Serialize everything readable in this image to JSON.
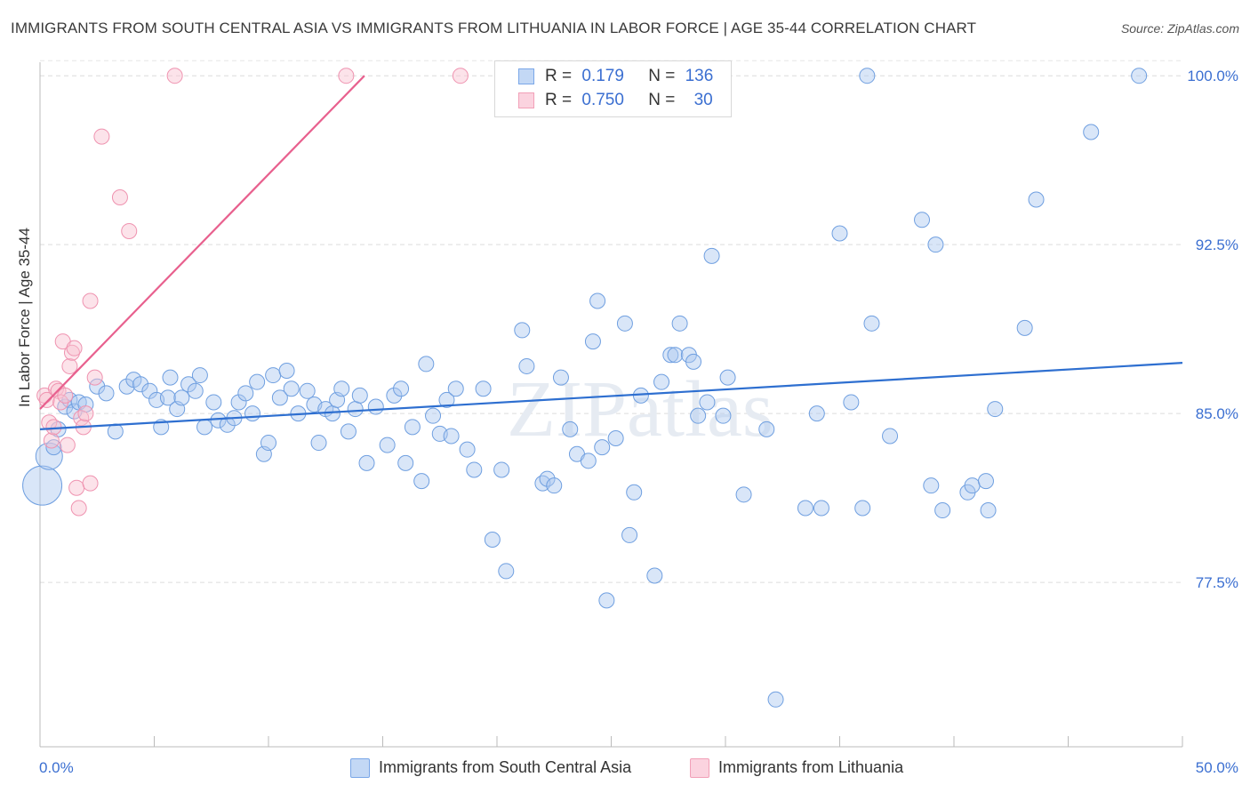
{
  "title": "IMMIGRANTS FROM SOUTH CENTRAL ASIA VS IMMIGRANTS FROM LITHUANIA IN LABOR FORCE | AGE 35-44 CORRELATION CHART",
  "source": "Source: ZipAtlas.com",
  "watermark": "ZIPatlas",
  "legend": {
    "rows": [
      {
        "r_label": "R =",
        "r_value": "0.179",
        "n_label": "N =",
        "n_value": "136",
        "color": "#7aa7e8"
      },
      {
        "r_label": "R =",
        "r_value": "0.750",
        "n_label": "N =",
        "n_value": "30",
        "color": "#f2a0b8"
      }
    ]
  },
  "bottom_legend": [
    "Immigrants from South Central Asia",
    "Immigrants from Lithuania"
  ],
  "chart_data": {
    "type": "scatter",
    "title": "IMMIGRANTS FROM SOUTH CENTRAL ASIA VS IMMIGRANTS FROM LITHUANIA IN LABOR FORCE | AGE 35-44 CORRELATION CHART",
    "xlabel": "",
    "ylabel": "In Labor Force | Age 35-44",
    "xlim": [
      0,
      50
    ],
    "ylim": [
      70.2,
      100.6
    ],
    "x_tick_labels": [
      "0.0%",
      "50.0%"
    ],
    "y_ticks": [
      77.5,
      85.0,
      92.5,
      100.0
    ],
    "y_tick_labels": [
      "77.5%",
      "85.0%",
      "92.5%",
      "100.0%"
    ],
    "grid": true,
    "legend_position": "top-center",
    "series": [
      {
        "name": "Immigrants from South Central Asia",
        "color": "#7aa7e8",
        "R": 0.179,
        "N": 136,
        "trend": {
          "x": [
            0.0,
            50.0
          ],
          "y": [
            84.3,
            87.25
          ]
        },
        "points": [
          [
            0.1,
            81.8
          ],
          [
            0.4,
            83.1
          ],
          [
            0.6,
            83.5
          ],
          [
            0.8,
            84.3
          ],
          [
            1.1,
            85.3
          ],
          [
            1.3,
            85.6
          ],
          [
            1.5,
            85.1
          ],
          [
            1.7,
            85.5
          ],
          [
            2.0,
            85.4
          ],
          [
            2.5,
            86.2
          ],
          [
            2.9,
            85.9
          ],
          [
            3.3,
            84.2
          ],
          [
            3.8,
            86.2
          ],
          [
            4.1,
            86.5
          ],
          [
            4.4,
            86.3
          ],
          [
            4.8,
            86.0
          ],
          [
            5.1,
            85.6
          ],
          [
            5.3,
            84.4
          ],
          [
            5.6,
            85.7
          ],
          [
            5.7,
            86.6
          ],
          [
            6.0,
            85.2
          ],
          [
            6.2,
            85.7
          ],
          [
            6.5,
            86.3
          ],
          [
            6.8,
            86.0
          ],
          [
            7.0,
            86.7
          ],
          [
            7.2,
            84.4
          ],
          [
            7.6,
            85.5
          ],
          [
            7.8,
            84.7
          ],
          [
            8.2,
            84.5
          ],
          [
            8.5,
            84.8
          ],
          [
            8.7,
            85.5
          ],
          [
            9.0,
            85.9
          ],
          [
            9.3,
            85.0
          ],
          [
            9.5,
            86.4
          ],
          [
            9.8,
            83.2
          ],
          [
            10.0,
            83.7
          ],
          [
            10.2,
            86.7
          ],
          [
            10.5,
            85.7
          ],
          [
            10.8,
            86.9
          ],
          [
            11.0,
            86.1
          ],
          [
            11.3,
            85.0
          ],
          [
            11.7,
            86.0
          ],
          [
            12.0,
            85.4
          ],
          [
            12.2,
            83.7
          ],
          [
            12.5,
            85.2
          ],
          [
            12.8,
            85.0
          ],
          [
            13.0,
            85.6
          ],
          [
            13.2,
            86.1
          ],
          [
            13.5,
            84.2
          ],
          [
            13.8,
            85.2
          ],
          [
            14.0,
            85.8
          ],
          [
            14.3,
            82.8
          ],
          [
            14.7,
            85.3
          ],
          [
            15.2,
            83.6
          ],
          [
            15.5,
            85.8
          ],
          [
            15.8,
            86.1
          ],
          [
            16.0,
            82.8
          ],
          [
            16.3,
            84.4
          ],
          [
            16.7,
            82.0
          ],
          [
            16.9,
            87.2
          ],
          [
            17.2,
            84.9
          ],
          [
            17.5,
            84.1
          ],
          [
            17.8,
            85.6
          ],
          [
            18.0,
            84.0
          ],
          [
            18.2,
            86.1
          ],
          [
            18.7,
            83.4
          ],
          [
            19.0,
            82.5
          ],
          [
            19.4,
            86.1
          ],
          [
            19.8,
            79.4
          ],
          [
            20.2,
            82.5
          ],
          [
            20.4,
            78.0
          ],
          [
            21.1,
            88.7
          ],
          [
            21.3,
            87.1
          ],
          [
            22.0,
            81.9
          ],
          [
            22.2,
            82.1
          ],
          [
            22.5,
            81.8
          ],
          [
            22.8,
            86.6
          ],
          [
            23.2,
            84.3
          ],
          [
            23.5,
            83.2
          ],
          [
            24.0,
            82.9
          ],
          [
            24.2,
            88.2
          ],
          [
            24.4,
            90.0
          ],
          [
            24.6,
            83.5
          ],
          [
            24.8,
            76.7
          ],
          [
            25.2,
            83.9
          ],
          [
            25.6,
            89.0
          ],
          [
            25.8,
            79.6
          ],
          [
            26.0,
            81.5
          ],
          [
            26.3,
            85.8
          ],
          [
            26.9,
            77.8
          ],
          [
            27.2,
            86.4
          ],
          [
            27.6,
            87.6
          ],
          [
            27.8,
            87.6
          ],
          [
            28.0,
            89.0
          ],
          [
            28.4,
            87.6
          ],
          [
            28.6,
            87.3
          ],
          [
            28.8,
            84.9
          ],
          [
            29.2,
            85.5
          ],
          [
            29.4,
            92.0
          ],
          [
            29.9,
            84.9
          ],
          [
            30.1,
            86.6
          ],
          [
            30.8,
            81.4
          ],
          [
            31.8,
            84.3
          ],
          [
            32.2,
            72.3
          ],
          [
            33.5,
            80.8
          ],
          [
            34.0,
            85.0
          ],
          [
            34.2,
            80.8
          ],
          [
            35.0,
            93.0
          ],
          [
            35.5,
            85.5
          ],
          [
            36.0,
            80.8
          ],
          [
            36.2,
            100.0
          ],
          [
            36.4,
            89.0
          ],
          [
            37.2,
            84.0
          ],
          [
            38.6,
            93.6
          ],
          [
            39.0,
            81.8
          ],
          [
            39.2,
            92.5
          ],
          [
            39.5,
            80.7
          ],
          [
            40.6,
            81.5
          ],
          [
            40.8,
            81.8
          ],
          [
            41.4,
            82.0
          ],
          [
            41.5,
            80.7
          ],
          [
            41.8,
            85.2
          ],
          [
            43.1,
            88.8
          ],
          [
            43.6,
            94.5
          ],
          [
            46.0,
            97.5
          ],
          [
            48.1,
            100.0
          ]
        ]
      },
      {
        "name": "Immigrants from Lithuania",
        "color": "#f2a0b8",
        "R": 0.75,
        "N": 30,
        "trend": {
          "x": [
            0.0,
            14.2
          ],
          "y": [
            85.2,
            100.0
          ]
        },
        "points": [
          [
            0.2,
            85.8
          ],
          [
            0.3,
            85.6
          ],
          [
            0.4,
            84.6
          ],
          [
            0.5,
            83.8
          ],
          [
            0.6,
            84.4
          ],
          [
            0.7,
            86.1
          ],
          [
            0.8,
            86.0
          ],
          [
            0.9,
            85.5
          ],
          [
            1.0,
            88.2
          ],
          [
            1.1,
            85.8
          ],
          [
            1.2,
            83.6
          ],
          [
            1.3,
            87.1
          ],
          [
            1.4,
            87.7
          ],
          [
            1.5,
            87.9
          ],
          [
            1.6,
            81.7
          ],
          [
            1.7,
            80.8
          ],
          [
            1.8,
            84.8
          ],
          [
            1.9,
            84.4
          ],
          [
            2.0,
            85.0
          ],
          [
            2.2,
            81.9
          ],
          [
            2.2,
            90.0
          ],
          [
            2.4,
            86.6
          ],
          [
            2.7,
            97.3
          ],
          [
            3.5,
            94.6
          ],
          [
            3.9,
            93.1
          ],
          [
            5.9,
            100.0
          ],
          [
            13.4,
            100.0
          ],
          [
            18.4,
            100.0
          ]
        ]
      }
    ]
  }
}
